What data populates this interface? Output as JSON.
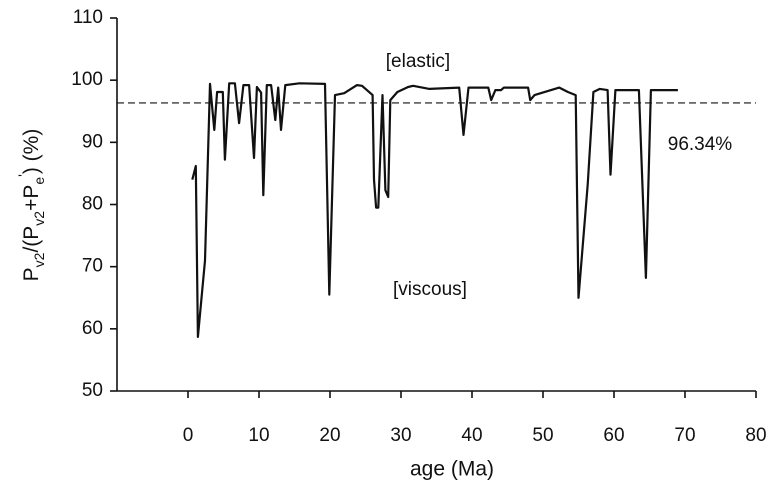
{
  "chart_data": {
    "type": "line",
    "xlabel": "age (Ma)",
    "ylabel_parts": [
      {
        "text": "P"
      },
      {
        "text": "v2",
        "sub": true
      },
      {
        "text": "/(P"
      },
      {
        "text": "v2",
        "sub": true
      },
      {
        "text": "+P"
      },
      {
        "text": "e",
        "sub": true
      },
      {
        "text": "'",
        "sup": true
      },
      {
        "text": ")  (%)"
      }
    ],
    "xlim": [
      -10,
      80
    ],
    "xticks": [
      0,
      10,
      20,
      30,
      40,
      50,
      60,
      70,
      80
    ],
    "ylim": [
      50,
      110
    ],
    "yticks": [
      50,
      60,
      70,
      80,
      90,
      100,
      110
    ],
    "grid": false,
    "annotations": [
      "[elastic]",
      "[viscous]"
    ],
    "reference_line": {
      "value": 96.34,
      "label": "96.34%"
    },
    "series": [
      {
        "color": "#111111",
        "x": [
          0.6,
          1.1,
          1.4,
          2.4,
          3.1,
          3.7,
          4.1,
          4.9,
          5.2,
          5.8,
          6.6,
          7.2,
          7.8,
          8.6,
          9.3,
          9.7,
          10.3,
          10.6,
          11.1,
          11.7,
          12.3,
          12.7,
          13.1,
          13.7,
          15.7,
          19.3,
          19.9,
          20.7,
          22.0,
          23.8,
          24.5,
          26.0,
          26.2,
          26.5,
          26.8,
          27.4,
          27.8,
          28.2,
          28.5,
          29.5,
          31.0,
          31.7,
          34.0,
          38.2,
          38.8,
          39.5,
          42.3,
          42.7,
          43.3,
          44.1,
          44.5,
          47.9,
          48.2,
          48.8,
          52.3,
          53.5,
          54.6,
          55.0,
          56.3,
          57.1,
          58.0,
          59.1,
          59.5,
          60.2,
          63.5,
          64.5,
          65.2,
          67.4,
          69.0
        ],
        "values": [
          84.0,
          86.2,
          58.7,
          71.0,
          99.4,
          92.0,
          98.1,
          98.1,
          87.2,
          99.5,
          99.5,
          93.1,
          99.2,
          99.2,
          87.5,
          98.9,
          98.0,
          81.5,
          99.2,
          99.2,
          93.6,
          98.8,
          92.0,
          99.2,
          99.5,
          99.4,
          65.5,
          97.6,
          97.9,
          99.2,
          99.1,
          97.6,
          84.0,
          79.5,
          79.5,
          97.6,
          82.3,
          81.2,
          96.8,
          98.1,
          98.9,
          99.1,
          98.6,
          98.8,
          91.2,
          98.8,
          98.8,
          96.8,
          98.4,
          98.4,
          98.8,
          98.8,
          96.8,
          97.6,
          98.8,
          98.1,
          97.6,
          65.0,
          83.2,
          98.1,
          98.6,
          98.4,
          84.8,
          98.4,
          98.4,
          68.2,
          98.4,
          98.4,
          98.4
        ]
      }
    ]
  }
}
